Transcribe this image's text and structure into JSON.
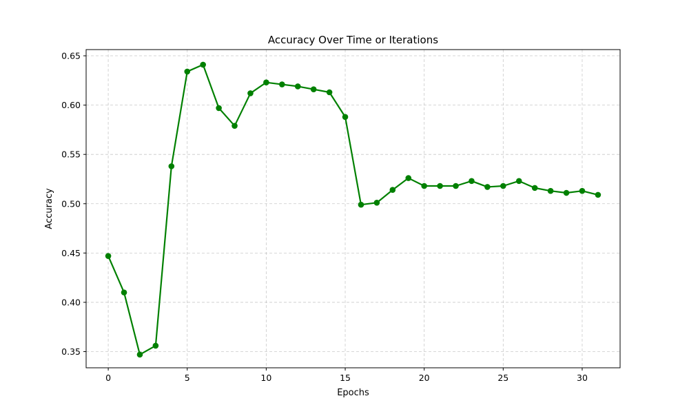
{
  "chart_data": {
    "type": "line",
    "title": "Accuracy Over Time or Iterations",
    "xlabel": "Epochs",
    "ylabel": "Accuracy",
    "xlim": [
      -1.4,
      32.4
    ],
    "ylim": [
      0.3336,
      0.6563
    ],
    "x_ticks": [
      0,
      5,
      10,
      15,
      20,
      25,
      30
    ],
    "y_ticks": [
      0.35,
      0.4,
      0.45,
      0.5,
      0.55,
      0.6,
      0.65
    ],
    "grid": true,
    "grid_style": "dashed",
    "line_color": "#008000",
    "marker": "circle",
    "series": [
      {
        "x": [
          0,
          1,
          2,
          3,
          4,
          5,
          6,
          7,
          8,
          9,
          10,
          11,
          12,
          13,
          14,
          15,
          16,
          17,
          18,
          19,
          20,
          21,
          22,
          23,
          24,
          25,
          26,
          27,
          28,
          29,
          30,
          31
        ],
        "values": [
          0.447,
          0.41,
          0.347,
          0.356,
          0.538,
          0.634,
          0.641,
          0.597,
          0.579,
          0.612,
          0.623,
          0.621,
          0.619,
          0.616,
          0.613,
          0.588,
          0.499,
          0.501,
          0.514,
          0.526,
          0.518,
          0.518,
          0.518,
          0.523,
          0.517,
          0.518,
          0.523,
          0.516,
          0.513,
          0.511,
          0.513,
          0.509
        ]
      }
    ]
  }
}
